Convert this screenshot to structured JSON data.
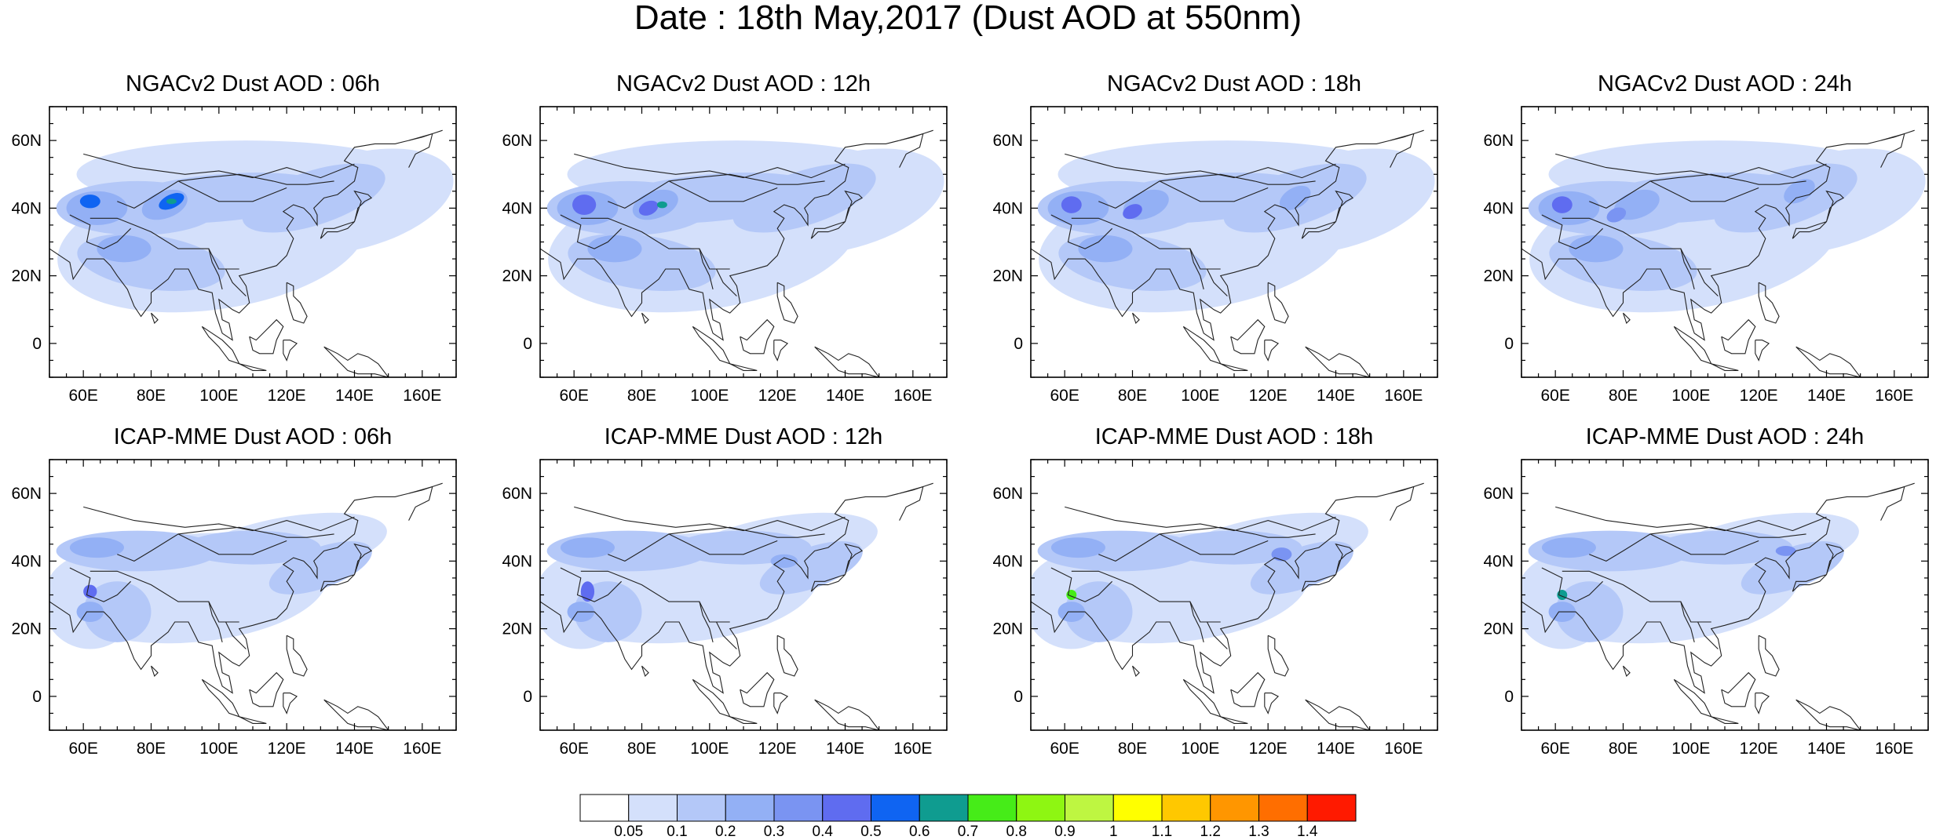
{
  "title": "Date : 18th May,2017 (Dust AOD at 550nm)",
  "panels": [
    {
      "title": "NGACv2 Dust AOD : 06h",
      "model": "NGACv2",
      "lead": "06h"
    },
    {
      "title": "NGACv2 Dust AOD : 12h",
      "model": "NGACv2",
      "lead": "12h"
    },
    {
      "title": "NGACv2 Dust AOD : 18h",
      "model": "NGACv2",
      "lead": "18h"
    },
    {
      "title": "NGACv2 Dust AOD : 24h",
      "model": "NGACv2",
      "lead": "24h"
    },
    {
      "title": "ICAP-MME Dust AOD : 06h",
      "model": "ICAP-MME",
      "lead": "06h"
    },
    {
      "title": "ICAP-MME Dust AOD : 12h",
      "model": "ICAP-MME",
      "lead": "12h"
    },
    {
      "title": "ICAP-MME Dust AOD : 18h",
      "model": "ICAP-MME",
      "lead": "18h"
    },
    {
      "title": "ICAP-MME Dust AOD : 24h",
      "model": "ICAP-MME",
      "lead": "24h"
    }
  ],
  "lat_ticks": [
    "60N",
    "40N",
    "20N",
    "0"
  ],
  "lon_ticks": [
    "60E",
    "80E",
    "100E",
    "120E",
    "140E",
    "160E"
  ],
  "map_extent": {
    "lon_min": 50,
    "lon_max": 170,
    "lat_min": -10,
    "lat_max": 70
  },
  "colorbar": {
    "levels": [
      "0.05",
      "0.1",
      "0.2",
      "0.3",
      "0.4",
      "0.5",
      "0.6",
      "0.7",
      "0.8",
      "0.9",
      "1",
      "1.1",
      "1.2",
      "1.3",
      "1.4"
    ],
    "colors": [
      "#ffffff",
      "#d4e0fb",
      "#b4c8f8",
      "#93b0f5",
      "#7a94f2",
      "#5f6cf0",
      "#0f64f2",
      "#0f9c90",
      "#46ec18",
      "#8ef612",
      "#bef641",
      "#ffff00",
      "#ffc800",
      "#ff9600",
      "#ff6e00",
      "#ff1a00"
    ]
  }
}
